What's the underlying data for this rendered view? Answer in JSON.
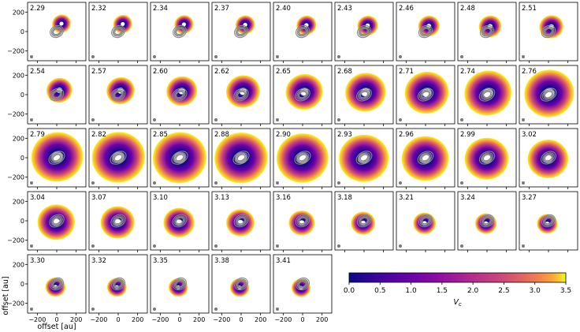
{
  "chart_data": {
    "type": "heatmap",
    "description_of_values": "velocity channel labels, one per panel",
    "channels": [
      "2.29",
      "2.32",
      "2.34",
      "2.37",
      "2.40",
      "2.43",
      "2.46",
      "2.48",
      "2.51",
      "2.54",
      "2.57",
      "2.60",
      "2.62",
      "2.65",
      "2.68",
      "2.71",
      "2.74",
      "2.76",
      "2.79",
      "2.82",
      "2.85",
      "2.88",
      "2.90",
      "2.93",
      "2.96",
      "2.99",
      "3.02",
      "3.04",
      "3.07",
      "3.10",
      "3.13",
      "3.16",
      "3.18",
      "3.21",
      "3.24",
      "3.27",
      "3.30",
      "3.32",
      "3.35",
      "3.38",
      "3.41"
    ],
    "grid": {
      "columns": 9,
      "rows": 5
    },
    "xlabel": "offset [au]",
    "ylabel": "offset [au]",
    "x_ticks": [
      "−200",
      "0",
      "200"
    ],
    "y_ticks": [
      "200",
      "0",
      "−200"
    ],
    "xlim": [
      -300,
      300
    ],
    "ylim": [
      -300,
      300
    ],
    "colorbar": {
      "label": "V",
      "label_sub": "c",
      "range": [
        0.0,
        3.5
      ],
      "ticks": [
        "0.0",
        "0.5",
        "1.0",
        "1.5",
        "2.0",
        "2.5",
        "3.0",
        "3.5"
      ],
      "colormap": "plasma"
    }
  }
}
